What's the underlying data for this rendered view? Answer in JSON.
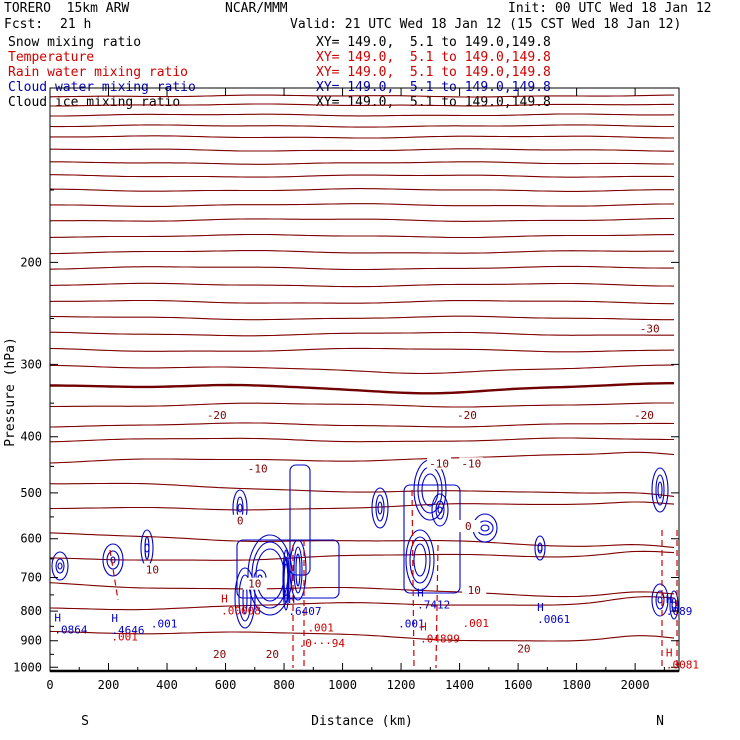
{
  "header": {
    "model": "TORERO  15km ARW",
    "center": "NCAR/MMM",
    "init": "Init: 00 UTC Wed 18 Jan 12",
    "fcst_label": "Fcst:",
    "fcst_value": "21 h",
    "valid": "Valid: 21 UTC Wed 18 Jan 12 (15 CST Wed 18 Jan 12)"
  },
  "legend": [
    {
      "label": "Snow mixing ratio",
      "coords": "XY= 149.0,  5.1 to 149.0,149.8",
      "color": "#000000"
    },
    {
      "label": "Temperature",
      "coords": "XY= 149.0,  5.1 to 149.0,149.8",
      "color": "#d00000"
    },
    {
      "label": "Rain water mixing ratio",
      "coords": "XY= 149.0,  5.1 to 149.0,149.8",
      "color": "#d00000"
    },
    {
      "label": "Cloud water mixing ratio",
      "coords": "XY= 149.0,  5.1 to 149.0,149.8",
      "color": "#0000b0"
    },
    {
      "label": "Cloud ice mixing ratio",
      "coords": "XY= 149.0,  5.1 to 149.0,149.8",
      "color": "#000000"
    }
  ],
  "chart_data": {
    "type": "line",
    "title": "",
    "xlabel": "Distance (km)",
    "ylabel": "Pressure (hPa)",
    "xlim": [
      0,
      2150
    ],
    "ylim": [
      1015,
      100
    ],
    "y_scale": "log",
    "x_ticks": [
      0,
      200,
      400,
      600,
      800,
      1000,
      1200,
      1400,
      1600,
      1800,
      2000
    ],
    "x_tick_labels": [
      "0",
      "200",
      "400",
      "600",
      "800",
      "1000",
      "1200",
      "1400",
      "1600",
      "1800",
      "2000"
    ],
    "y_ticks": [
      200,
      300,
      400,
      500,
      600,
      700,
      800,
      900,
      1000
    ],
    "y_tick_labels": [
      "200",
      "300",
      "400",
      "500",
      "600",
      "700",
      "800",
      "900",
      "1000"
    ],
    "end_labels": {
      "left": "S",
      "right": "N"
    },
    "temperature_colors": {
      "isotherm": "#800000",
      "zero_line": "#700000",
      "rain": "#d00000",
      "cloud_water": "#0000c8",
      "ground": "#000000"
    },
    "isotherm_labels": [
      {
        "text": "-30",
        "x": 2050,
        "y": 262
      },
      {
        "text": "-20",
        "x": 570,
        "y": 370
      },
      {
        "text": "-20",
        "x": 1425,
        "y": 370
      },
      {
        "text": "-20",
        "x": 2030,
        "y": 370
      },
      {
        "text": "-10",
        "x": 710,
        "y": 457
      },
      {
        "text": "-10",
        "x": 1330,
        "y": 448
      },
      {
        "text": "-10",
        "x": 1440,
        "y": 448
      },
      {
        "text": "0",
        "x": 650,
        "y": 563
      },
      {
        "text": "0",
        "x": 1430,
        "y": 575
      },
      {
        "text": "10",
        "x": 350,
        "y": 683
      },
      {
        "text": "10",
        "x": 700,
        "y": 723
      },
      {
        "text": "10",
        "x": 1450,
        "y": 742
      },
      {
        "text": "20",
        "x": 580,
        "y": 957
      },
      {
        "text": "20",
        "x": 760,
        "y": 957
      },
      {
        "text": "20",
        "x": 1620,
        "y": 935
      }
    ],
    "max_labels": [
      {
        "text": "H",
        "value": ".00008",
        "x": 585,
        "y": 798,
        "color": "#d00000"
      },
      {
        "text": "H",
        "value": ".6407",
        "x": 815,
        "y": 800,
        "color": "#0000c8"
      },
      {
        "text": "H",
        "value": ".7412",
        "x": 1255,
        "y": 780,
        "color": "#0000c8"
      },
      {
        "text": "",
        "value": ".001",
        "x": 1190,
        "y": 840,
        "color": "#0000c8"
      },
      {
        "text": "H",
        "value": ".0061",
        "x": 1665,
        "y": 825,
        "color": "#0000c8"
      },
      {
        "text": "",
        "value": ".001",
        "x": 345,
        "y": 840,
        "color": "#0000c8"
      },
      {
        "text": "H",
        "value": ".0864",
        "x": 15,
        "y": 860,
        "color": "#0000c8"
      },
      {
        "text": "H",
        "value": ".4646",
        "x": 210,
        "y": 862,
        "color": "#0000c8"
      },
      {
        "text": "",
        "value": ".001",
        "x": 210,
        "y": 885,
        "color": "#d00000"
      },
      {
        "text": "",
        "value": ".0···94",
        "x": 850,
        "y": 908,
        "color": "#d00000"
      },
      {
        "text": "H",
        "value": ".04899",
        "x": 1265,
        "y": 892,
        "color": "#d00000"
      },
      {
        "text": "",
        "value": ".001",
        "x": 1410,
        "y": 838,
        "color": "#d00000"
      },
      {
        "text": "",
        "value": ".001",
        "x": 880,
        "y": 853,
        "color": "#d00000"
      },
      {
        "text": "H",
        "value": ".089",
        "x": 2105,
        "y": 800,
        "color": "#0000c8"
      },
      {
        "text": "H",
        "value": ".0081",
        "x": 2105,
        "y": 990,
        "color": "#d00000"
      }
    ]
  }
}
